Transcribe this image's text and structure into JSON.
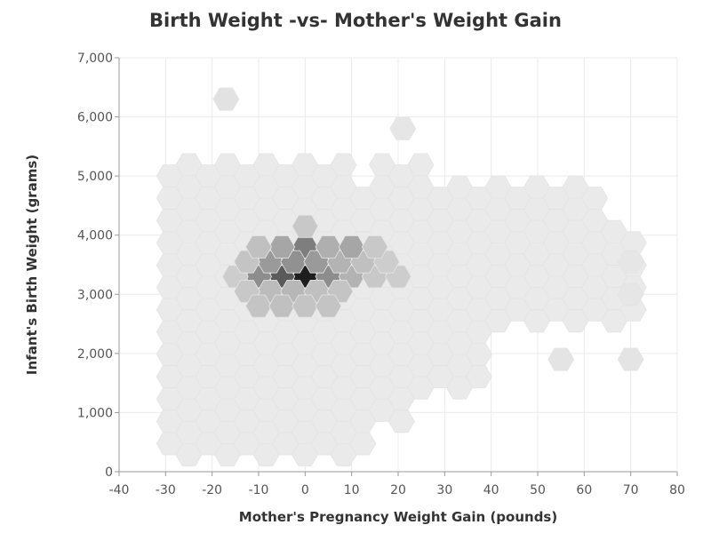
{
  "chart_data": {
    "type": "heatmap",
    "subtype": "hexbin",
    "title": "Birth Weight -vs- Mother's Weight Gain",
    "xlabel": "Mother's Pregnancy Weight Gain (pounds)",
    "ylabel": "Infant's Birth Weight (grams)",
    "xlim": [
      -40,
      80
    ],
    "ylim": [
      0,
      7000
    ],
    "x_ticks": [
      -40,
      -30,
      -20,
      -10,
      0,
      10,
      20,
      30,
      40,
      50,
      60,
      70,
      80
    ],
    "y_ticks": [
      0,
      1000,
      2000,
      3000,
      4000,
      5000,
      6000,
      7000
    ],
    "x_tick_labels": [
      "-40",
      "-30",
      "-20",
      "-10",
      "0",
      "10",
      "20",
      "30",
      "40",
      "50",
      "60",
      "70",
      "80"
    ],
    "y_tick_labels": [
      "0",
      "1,000",
      "2,000",
      "3,000",
      "4,000",
      "5,000",
      "6,000",
      "7,000"
    ],
    "grid": true,
    "legend": "none",
    "color_scale": {
      "low": "#f3f3f3",
      "high": "#1e1e1e"
    },
    "cells": [
      {
        "x": 0,
        "y": 3300,
        "density": 1.0
      },
      {
        "x": -5,
        "y": 3300,
        "density": 0.72
      },
      {
        "x": -10,
        "y": 3300,
        "density": 0.48
      },
      {
        "x": 5,
        "y": 3300,
        "density": 0.48
      },
      {
        "x": 10,
        "y": 3300,
        "density": 0.3
      },
      {
        "x": 15,
        "y": 3300,
        "density": 0.2
      },
      {
        "x": 20,
        "y": 3300,
        "density": 0.18
      },
      {
        "x": -15,
        "y": 3300,
        "density": 0.18
      },
      {
        "x": 0,
        "y": 3800,
        "density": 0.55
      },
      {
        "x": -7.5,
        "y": 3550,
        "density": 0.42
      },
      {
        "x": -2.5,
        "y": 3550,
        "density": 0.46
      },
      {
        "x": 2.5,
        "y": 3550,
        "density": 0.42
      },
      {
        "x": 7.5,
        "y": 3550,
        "density": 0.3
      },
      {
        "x": -12.5,
        "y": 3550,
        "density": 0.22
      },
      {
        "x": 12.5,
        "y": 3550,
        "density": 0.24
      },
      {
        "x": 17.5,
        "y": 3550,
        "density": 0.18
      },
      {
        "x": -5,
        "y": 3800,
        "density": 0.36
      },
      {
        "x": 5,
        "y": 3800,
        "density": 0.32
      },
      {
        "x": 10,
        "y": 3800,
        "density": 0.36
      },
      {
        "x": -10,
        "y": 3800,
        "density": 0.24
      },
      {
        "x": 15,
        "y": 3800,
        "density": 0.2
      },
      {
        "x": 0,
        "y": 4150,
        "density": 0.2
      },
      {
        "x": -7.5,
        "y": 3050,
        "density": 0.26
      },
      {
        "x": -2.5,
        "y": 3050,
        "density": 0.28
      },
      {
        "x": 2.5,
        "y": 3050,
        "density": 0.24
      },
      {
        "x": 7.5,
        "y": 3050,
        "density": 0.22
      },
      {
        "x": -12.5,
        "y": 3050,
        "density": 0.2
      },
      {
        "x": -10,
        "y": 2800,
        "density": 0.22
      },
      {
        "x": -5,
        "y": 2800,
        "density": 0.24
      },
      {
        "x": 0,
        "y": 2800,
        "density": 0.22
      },
      {
        "x": 5,
        "y": 2800,
        "density": 0.22
      },
      {
        "x": -17,
        "y": 6300,
        "density": 0.08
      },
      {
        "x": 21,
        "y": 5800,
        "density": 0.06
      },
      {
        "x": 55,
        "y": 1900,
        "density": 0.07
      },
      {
        "x": 70,
        "y": 1900,
        "density": 0.07
      },
      {
        "x": 70,
        "y": 3000,
        "density": 0.06
      },
      {
        "x": 70,
        "y": 3550,
        "density": 0.06
      }
    ],
    "background_density": 0.04
  }
}
